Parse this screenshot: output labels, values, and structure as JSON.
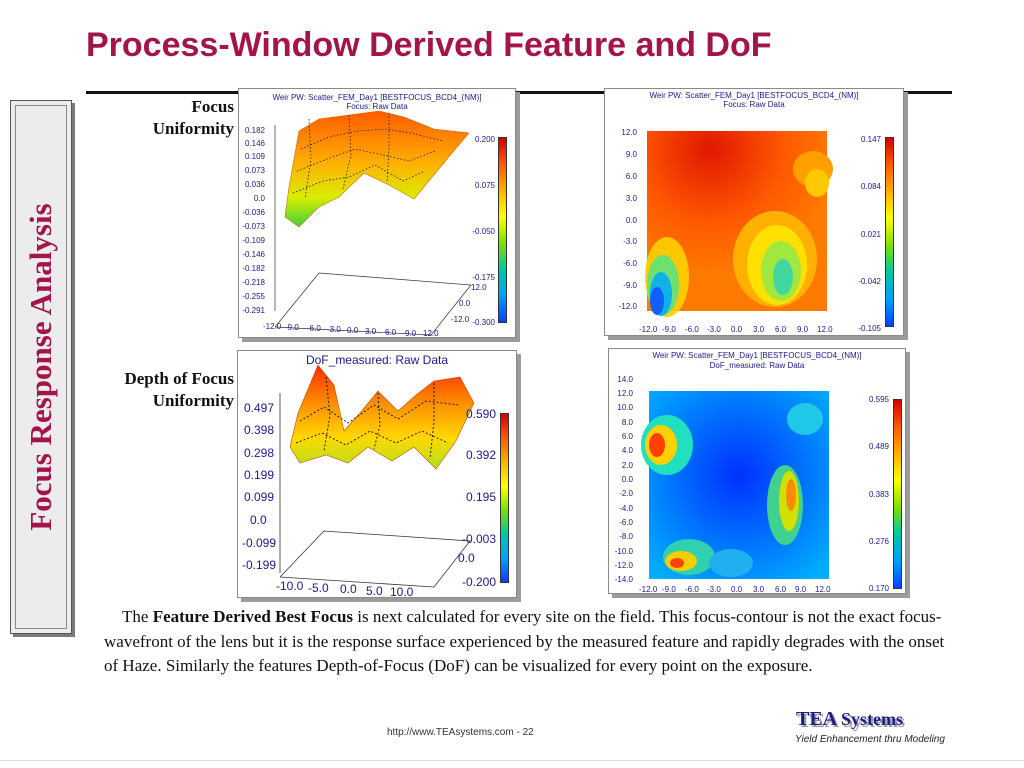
{
  "title": "Process-Window Derived Feature and DoF",
  "side_label": "Focus Response Analysis",
  "rows": {
    "focus": [
      "Focus",
      "Uniformity"
    ],
    "dof": [
      "Depth of Focus",
      "Uniformity"
    ]
  },
  "plots": {
    "focus_surface": {
      "title": [
        "Weir PW: Scatter_FEM_Day1 [BESTFOCUS_BCD4_(NM)]",
        "Focus: Raw Data"
      ],
      "z_ticks": [
        "0.182",
        "0.146",
        "0.109",
        "0.073",
        "0.036",
        "0.0",
        "-0.036",
        "-0.073",
        "-0.109",
        "-0.146",
        "-0.182",
        "-0.218",
        "-0.255",
        "-0.291"
      ],
      "x_ticks": [
        "-12.0",
        "-9.0",
        "-6.0",
        "-3.0",
        "0.0",
        "3.0",
        "6.0",
        "9.0",
        "12.0"
      ],
      "y_ticks": [
        "12.0",
        "0.0",
        "-12.0"
      ],
      "colorbar": [
        "0.200",
        "0.075",
        "-0.050",
        "-0.175",
        "-0.300"
      ]
    },
    "focus_map": {
      "title": [
        "Weir PW: Scatter_FEM_Day1 [BESTFOCUS_BCD4_(NM)]",
        "Focus: Raw Data"
      ],
      "y_ticks": [
        "12.0",
        "9.0",
        "6.0",
        "3.0",
        "0.0",
        "-3.0",
        "-6.0",
        "-9.0",
        "-12.0"
      ],
      "x_ticks": [
        "-12.0",
        "-9.0",
        "-6.0",
        "-3.0",
        "0.0",
        "3.0",
        "6.0",
        "9.0",
        "12.0"
      ],
      "colorbar": [
        "0.147",
        "0.084",
        "0.021",
        "-0.042",
        "-0.105"
      ]
    },
    "dof_surface": {
      "title": [
        "DoF_measured: Raw Data"
      ],
      "z_ticks": [
        "0.497",
        "0.398",
        "0.298",
        "0.199",
        "0.099",
        "0.0",
        "-0.099",
        "-0.199"
      ],
      "x_ticks": [
        "-10.0",
        "-5.0",
        "0.0",
        "5.0",
        "10.0"
      ],
      "y_ticks": [
        "0.0"
      ],
      "colorbar": [
        "0.590",
        "0.392",
        "0.195",
        "-0.003",
        "-0.200"
      ]
    },
    "dof_map": {
      "title": [
        "Weir PW: Scatter_FEM_Day1 [BESTFOCUS_BCD4_(NM)]",
        "DoF_measured: Raw Data"
      ],
      "y_ticks": [
        "14.0",
        "12.0",
        "10.0",
        "8.0",
        "6.0",
        "4.0",
        "2.0",
        "0.0",
        "-2.0",
        "-4.0",
        "-6.0",
        "-8.0",
        "-10.0",
        "-12.0",
        "-14.0"
      ],
      "x_ticks": [
        "-12.0",
        "-9.0",
        "-6.0",
        "-3.0",
        "0.0",
        "3.0",
        "6.0",
        "9.0",
        "12.0"
      ],
      "colorbar": [
        "0.595",
        "0.489",
        "0.383",
        "0.276",
        "0.170"
      ]
    }
  },
  "paragraph": {
    "lead": "The ",
    "bold": "Feature Derived Best Focus",
    "rest": " is next calculated for every site on the field. This focus-contour is not the exact focus-wavefront of the lens but it is the response surface experienced by the measured feature and rapidly degrades with the onset of Haze. Similarly the features Depth-of-Focus (DoF) can be visualized for every point on the exposure."
  },
  "footer": {
    "url": "http://www.TEAsystems.com - 22",
    "logo_tea": "TEA",
    "logo_systems": "Systems",
    "tagline": "Yield Enhancement thru Modeling"
  }
}
